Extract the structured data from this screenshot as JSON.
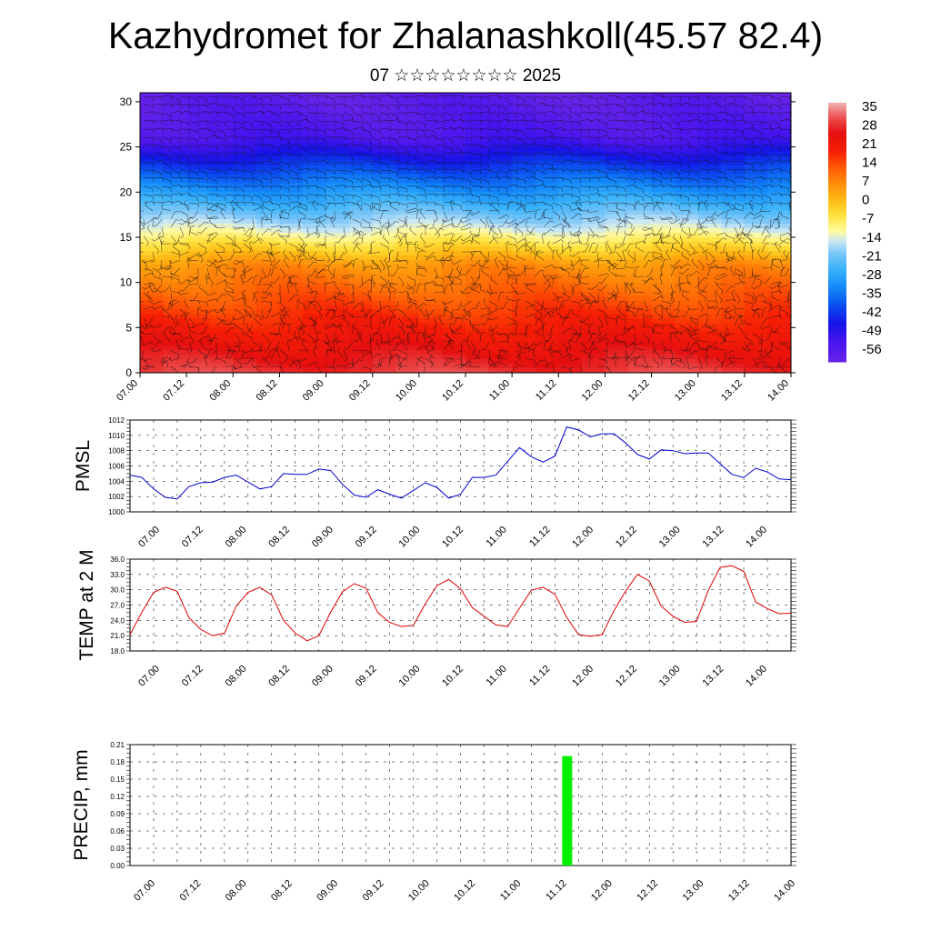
{
  "title": "Kazhydromet for Zhalanashkoll(45.57 82.4)",
  "subtitle": "07 ☆☆☆☆☆☆☆☆ 2025",
  "colors": {
    "pmsl_line": "#0000cc",
    "temp_line": "#dd0000",
    "precip_bar": "#00ee00",
    "frame": "#000000"
  },
  "chart_data": [
    {
      "type": "heatmap",
      "name": "cross-section",
      "xlabel": "",
      "ylabel": "",
      "x_tick_labels": [
        "07.00",
        "07.12",
        "08.00",
        "08.12",
        "09.00",
        "09.12",
        "10.00",
        "10.12",
        "11.00",
        "11.12",
        "12.00",
        "12.12",
        "13.00",
        "13.12",
        "14.00"
      ],
      "y_ticks": [
        0,
        5,
        10,
        15,
        20,
        25,
        30
      ],
      "ylim": [
        0,
        31
      ],
      "colorbar_labels": [
        "35",
        "28",
        "21",
        "14",
        "7",
        "0",
        "-7",
        "-14",
        "-21",
        "-28",
        "-35",
        "-42",
        "-49",
        "-56"
      ],
      "colorbar_range": [
        -60,
        38
      ],
      "overlay": "wind barbs"
    },
    {
      "type": "line",
      "name": "PMSL",
      "ylabel": "PMSL",
      "ylim": [
        1000,
        1012
      ],
      "y_tick_labels": [
        "1000",
        "1002",
        "1004",
        "1006",
        "1008",
        "1010",
        "1012"
      ],
      "x_tick_labels": [
        "07.00",
        "07.12",
        "08.00",
        "08.12",
        "09.00",
        "09.12",
        "10.00",
        "10.12",
        "11.00",
        "11.12",
        "12.00",
        "12.12",
        "13.00",
        "13.12",
        "14.00"
      ],
      "x_step_hours": 3,
      "values": [
        1004.8,
        1004.5,
        1003.0,
        1001.9,
        1001.7,
        1003.3,
        1003.8,
        1003.9,
        1004.5,
        1004.8,
        1003.9,
        1003.0,
        1003.3,
        1005.0,
        1004.9,
        1004.9,
        1005.6,
        1005.4,
        1003.6,
        1002.2,
        1001.9,
        1002.9,
        1002.3,
        1001.8,
        1002.8,
        1003.8,
        1003.2,
        1001.8,
        1002.3,
        1004.5,
        1004.5,
        1004.8,
        1006.6,
        1008.4,
        1007.2,
        1006.5,
        1007.3,
        1011.1,
        1010.7,
        1009.8,
        1010.2,
        1010.2,
        1009.0,
        1007.5,
        1006.9,
        1008.1,
        1008.0,
        1007.6,
        1007.7,
        1007.7,
        1006.3,
        1004.9,
        1004.5,
        1005.7,
        1005.2,
        1004.3,
        1004.2
      ]
    },
    {
      "type": "line",
      "name": "TEMP at 2 M",
      "ylabel": "TEMP at 2 M",
      "ylim": [
        18,
        36
      ],
      "y_tick_labels": [
        "18.0",
        "21.0",
        "24.0",
        "27.0",
        "30.0",
        "33.0",
        "36.0"
      ],
      "x_tick_labels": [
        "07.00",
        "07.12",
        "08.00",
        "08.12",
        "09.00",
        "09.12",
        "10.00",
        "10.12",
        "11.00",
        "11.12",
        "12.00",
        "12.12",
        "13.00",
        "13.12",
        "14.00"
      ],
      "x_step_hours": 3,
      "values": [
        21.2,
        25.6,
        29.5,
        30.5,
        29.7,
        24.5,
        22.2,
        21.0,
        21.5,
        26.8,
        29.5,
        30.5,
        29.0,
        24.0,
        21.5,
        20.0,
        21.0,
        25.6,
        29.6,
        31.2,
        30.3,
        25.5,
        23.6,
        22.8,
        23.0,
        27.2,
        30.8,
        32.0,
        30.2,
        26.5,
        24.8,
        23.1,
        22.8,
        26.4,
        29.9,
        30.5,
        29.1,
        24.6,
        21.2,
        20.9,
        21.2,
        25.9,
        29.8,
        33.0,
        31.7,
        26.8,
        24.8,
        23.6,
        23.8,
        29.9,
        34.4,
        34.7,
        33.6,
        27.6,
        26.3,
        25.3,
        25.4
      ]
    },
    {
      "type": "bar",
      "name": "PRECIP, mm",
      "ylabel": "PRECIP, mm",
      "ylim": [
        0,
        0.21
      ],
      "y_tick_labels": [
        "0.00",
        "0.03",
        "0.06",
        "0.09",
        "0.12",
        "0.15",
        "0.18",
        "0.21"
      ],
      "x_tick_labels": [
        "07.00",
        "07.12",
        "08.00",
        "08.12",
        "09.00",
        "09.12",
        "10.00",
        "10.12",
        "11.00",
        "11.12",
        "12.00",
        "12.12",
        "13.00",
        "13.12",
        "14.00"
      ],
      "bars": [
        {
          "x_hours": 111,
          "value": 0.19
        }
      ]
    }
  ]
}
